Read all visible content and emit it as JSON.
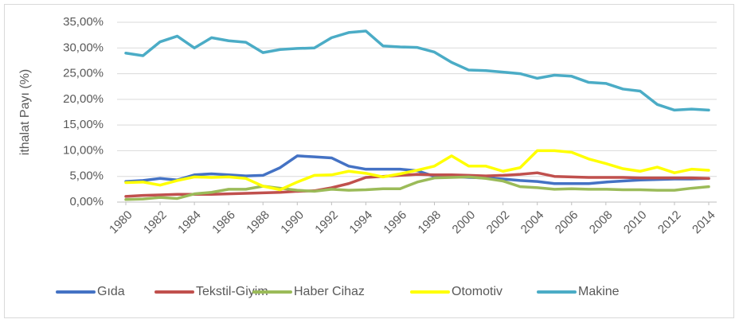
{
  "chart_data": {
    "type": "line",
    "y_label": "ithalat Payı (%)",
    "x": [
      1980,
      1981,
      1982,
      1983,
      1984,
      1985,
      1986,
      1987,
      1988,
      1989,
      1990,
      1991,
      1992,
      1993,
      1994,
      1995,
      1996,
      1997,
      1998,
      1999,
      2000,
      2001,
      2002,
      2003,
      2004,
      2005,
      2006,
      2007,
      2008,
      2009,
      2010,
      2011,
      2012,
      2013,
      2014
    ],
    "xlim": [
      1980,
      2014
    ],
    "xticks": [
      1980,
      1982,
      1984,
      1986,
      1988,
      1990,
      1992,
      1994,
      1996,
      1998,
      2000,
      2002,
      2004,
      2006,
      2008,
      2010,
      2012,
      2014
    ],
    "ylim": [
      0,
      35
    ],
    "yticks": [
      {
        "value": 0,
        "label": "0,00%"
      },
      {
        "value": 5,
        "label": "5,00%"
      },
      {
        "value": 10,
        "label": "10,00%"
      },
      {
        "value": 15,
        "label": "15,00%"
      },
      {
        "value": 20,
        "label": "20,00%"
      },
      {
        "value": 25,
        "label": "25,00%"
      },
      {
        "value": 30,
        "label": "30,00%"
      },
      {
        "value": 35,
        "label": "35,00%"
      }
    ],
    "grid": true,
    "legend": "bottom",
    "series": [
      {
        "name": "Gıda",
        "color": "#4472c4",
        "values": [
          4.0,
          4.2,
          4.6,
          4.3,
          5.3,
          5.5,
          5.3,
          5.1,
          5.2,
          6.7,
          9.0,
          8.8,
          8.6,
          7.0,
          6.4,
          6.4,
          6.4,
          6.1,
          5.0,
          5.0,
          4.8,
          4.7,
          4.5,
          4.2,
          4.0,
          3.6,
          3.6,
          3.6,
          3.9,
          4.1,
          4.3,
          4.4,
          4.5,
          4.5,
          4.6
        ]
      },
      {
        "name": "Tekstil-Giyim",
        "color": "#c0504d",
        "values": [
          1.1,
          1.3,
          1.4,
          1.5,
          1.5,
          1.5,
          1.6,
          1.7,
          1.8,
          1.9,
          2.1,
          2.2,
          2.8,
          3.6,
          4.8,
          5.0,
          5.2,
          5.4,
          5.3,
          5.3,
          5.2,
          5.1,
          5.2,
          5.4,
          5.7,
          5.0,
          4.9,
          4.8,
          4.8,
          4.8,
          4.7,
          4.7,
          4.7,
          4.7,
          4.6
        ]
      },
      {
        "name": "Haber Cihaz",
        "color": "#9bbb59",
        "values": [
          0.5,
          0.6,
          0.9,
          0.7,
          1.6,
          1.9,
          2.5,
          2.5,
          3.1,
          2.7,
          2.3,
          2.1,
          2.5,
          2.3,
          2.4,
          2.6,
          2.6,
          3.9,
          4.7,
          4.8,
          4.9,
          4.6,
          4.1,
          3.0,
          2.8,
          2.5,
          2.6,
          2.5,
          2.5,
          2.4,
          2.4,
          2.3,
          2.3,
          2.7,
          3.0
        ]
      },
      {
        "name": "Otomotiv",
        "color": "#ffff00",
        "values": [
          3.8,
          3.9,
          3.3,
          4.2,
          4.9,
          4.8,
          4.9,
          4.6,
          3.1,
          2.4,
          3.9,
          5.2,
          5.3,
          6.0,
          5.6,
          4.9,
          5.5,
          6.2,
          7.0,
          9.0,
          7.0,
          7.0,
          6.0,
          6.7,
          10.0,
          10.0,
          9.7,
          8.4,
          7.5,
          6.5,
          6.0,
          6.8,
          5.7,
          6.4,
          6.2
        ]
      },
      {
        "name": "Makine",
        "color": "#4bacc6",
        "values": [
          29.0,
          28.5,
          31.2,
          32.3,
          30.0,
          32.0,
          31.4,
          31.1,
          29.1,
          29.7,
          29.9,
          30.0,
          32.0,
          33.0,
          33.3,
          30.4,
          30.2,
          30.1,
          29.2,
          27.2,
          25.7,
          25.6,
          25.3,
          25.0,
          24.1,
          24.7,
          24.5,
          23.3,
          23.1,
          22.0,
          21.6,
          19.0,
          17.9,
          18.1,
          17.9
        ]
      }
    ]
  }
}
